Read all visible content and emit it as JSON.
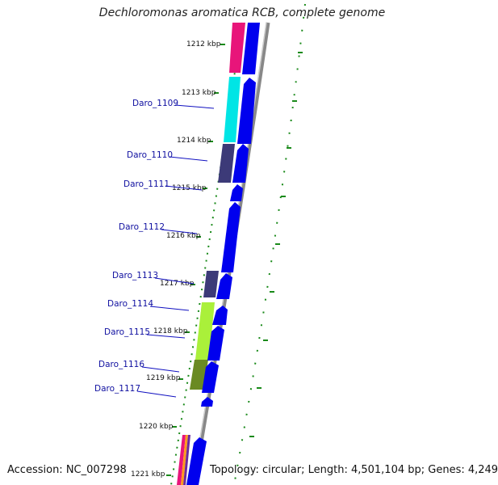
{
  "header": {
    "title": "Dechloromonas aromatica RCB, complete genome"
  },
  "footer": {
    "accession": "Accession: NC_007298",
    "summary": "Topology: circular; Length: 4,501,104 bp; Genes: 4,249"
  },
  "colors": {
    "forward_gene": "#0000ee",
    "backbone": "#999999",
    "tick": "#1a8a1a",
    "label": "#1010a0"
  },
  "ruler_labels": [
    "1212 kbp",
    "1213 kbp",
    "1214 kbp",
    "1215 kbp",
    "1216 kbp",
    "1217 kbp",
    "1218 kbp",
    "1219 kbp",
    "1220 kbp",
    "1221 kbp"
  ],
  "gene_labels": [
    "Daro_1109",
    "Daro_1110",
    "Daro_1111",
    "Daro_1112",
    "Daro_1113",
    "Daro_1114",
    "Daro_1115",
    "Daro_1116",
    "Daro_1117"
  ],
  "cog_blocks": [
    {
      "color": "#e8157a"
    },
    {
      "color": "#00e5e5"
    },
    {
      "color": "#3c3a78"
    },
    {
      "color": "#3c3a78"
    },
    {
      "color": "#aaf03a"
    },
    {
      "color": "#6a8a22"
    },
    {
      "color": "#e8157a"
    }
  ],
  "forward_genes": [
    {
      "color": "#0000ee"
    },
    {
      "color": "#0000ee"
    },
    {
      "color": "#0000ee"
    },
    {
      "color": "#0000ee"
    },
    {
      "color": "#0000ee"
    },
    {
      "color": "#0000ee"
    },
    {
      "color": "#0000ee"
    },
    {
      "color": "#0000ee"
    },
    {
      "color": "#0000ee"
    },
    {
      "color": "#0000ee"
    },
    {
      "color": "#0000ee"
    }
  ]
}
